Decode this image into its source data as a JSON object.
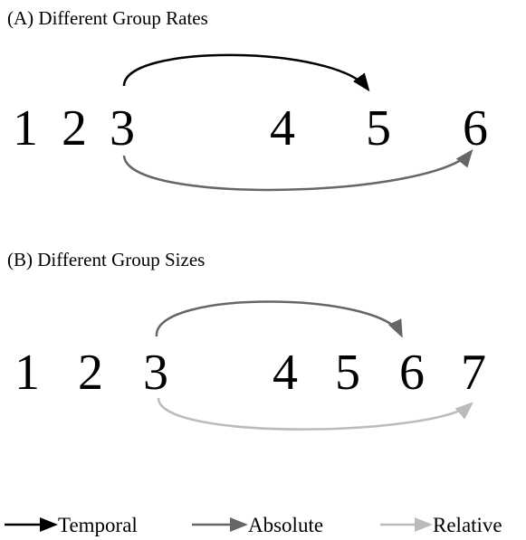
{
  "panels": [
    {
      "title": "(A) Different Group Rates",
      "items": [
        "1",
        "2",
        "3",
        "4",
        "5",
        "6"
      ]
    },
    {
      "title": "(B) Different Group Sizes",
      "items": [
        "1",
        "2",
        "3",
        "4",
        "5",
        "6",
        "7"
      ]
    }
  ],
  "legend": [
    "Temporal",
    "Absolute",
    "Relative"
  ]
}
